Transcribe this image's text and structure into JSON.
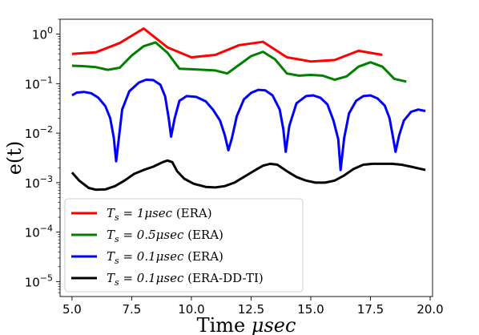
{
  "chart_data": {
    "type": "line",
    "xlabel": "Time μsec",
    "ylabel": "e(t)",
    "xlim": [
      4.5,
      20.1
    ],
    "ylim": [
      5e-06,
      2.0
    ],
    "yscale": "log",
    "grid": false,
    "legend_position": "lower-left",
    "x_ticks": [
      {
        "value": 5.0,
        "label": "5.0"
      },
      {
        "value": 7.5,
        "label": "7.5"
      },
      {
        "value": 10.0,
        "label": "10.0"
      },
      {
        "value": 12.5,
        "label": "12.5"
      },
      {
        "value": 15.0,
        "label": "15.0"
      },
      {
        "value": 17.5,
        "label": "17.5"
      },
      {
        "value": 20.0,
        "label": "20.0"
      }
    ],
    "y_ticks": [
      {
        "value": 1,
        "base": "10",
        "exp": "0"
      },
      {
        "value": 0.1,
        "base": "10",
        "exp": "−1"
      },
      {
        "value": 0.01,
        "base": "10",
        "exp": "−2"
      },
      {
        "value": 0.001,
        "base": "10",
        "exp": "−3"
      },
      {
        "value": 0.0001,
        "base": "10",
        "exp": "−4"
      },
      {
        "value": 1e-05,
        "base": "10",
        "exp": "−5"
      }
    ],
    "series": [
      {
        "name": "T_s = 1μsec (ERA)",
        "legend_math": "T",
        "legend_sub": "s",
        "legend_eq": " = 1μsec",
        "legend_note": " (ERA)",
        "color": "#ff0000",
        "points": [
          [
            5.0,
            0.4
          ],
          [
            6.0,
            0.43
          ],
          [
            7.0,
            0.66
          ],
          [
            8.0,
            1.3
          ],
          [
            9.0,
            0.54
          ],
          [
            10.0,
            0.34
          ],
          [
            11.0,
            0.38
          ],
          [
            12.0,
            0.6
          ],
          [
            13.0,
            0.7
          ],
          [
            14.0,
            0.34
          ],
          [
            15.0,
            0.28
          ],
          [
            16.0,
            0.3
          ],
          [
            17.0,
            0.46
          ],
          [
            18.0,
            0.38
          ]
        ]
      },
      {
        "name": "T_s = 0.5μsec (ERA)",
        "legend_math": "T",
        "legend_sub": "s",
        "legend_eq": " = 0.5μsec",
        "legend_note": " (ERA)",
        "color": "#008000",
        "points": [
          [
            5.0,
            0.23
          ],
          [
            5.5,
            0.225
          ],
          [
            6.0,
            0.215
          ],
          [
            6.5,
            0.19
          ],
          [
            7.0,
            0.21
          ],
          [
            7.5,
            0.37
          ],
          [
            8.0,
            0.57
          ],
          [
            8.5,
            0.68
          ],
          [
            9.0,
            0.42
          ],
          [
            9.5,
            0.2
          ],
          [
            10.0,
            0.195
          ],
          [
            10.5,
            0.19
          ],
          [
            11.0,
            0.185
          ],
          [
            11.5,
            0.16
          ],
          [
            12.0,
            0.24
          ],
          [
            12.5,
            0.36
          ],
          [
            13.0,
            0.44
          ],
          [
            13.5,
            0.31
          ],
          [
            14.0,
            0.16
          ],
          [
            14.5,
            0.145
          ],
          [
            15.0,
            0.15
          ],
          [
            15.5,
            0.145
          ],
          [
            16.0,
            0.12
          ],
          [
            16.5,
            0.14
          ],
          [
            17.0,
            0.22
          ],
          [
            17.5,
            0.27
          ],
          [
            18.0,
            0.22
          ],
          [
            18.5,
            0.125
          ],
          [
            19.0,
            0.11
          ]
        ]
      },
      {
        "name": "T_s = 0.1μsec (ERA)",
        "legend_math": "T",
        "legend_sub": "s",
        "legend_eq": " = 0.1μsec",
        "legend_note": " (ERA)",
        "color": "#0000ff",
        "points": [
          [
            5.0,
            0.058
          ],
          [
            5.2,
            0.066
          ],
          [
            5.5,
            0.068
          ],
          [
            5.8,
            0.064
          ],
          [
            6.1,
            0.052
          ],
          [
            6.4,
            0.035
          ],
          [
            6.6,
            0.02
          ],
          [
            6.75,
            0.008
          ],
          [
            6.85,
            0.0027
          ],
          [
            6.95,
            0.007
          ],
          [
            7.1,
            0.03
          ],
          [
            7.4,
            0.07
          ],
          [
            7.8,
            0.105
          ],
          [
            8.1,
            0.12
          ],
          [
            8.4,
            0.118
          ],
          [
            8.7,
            0.095
          ],
          [
            8.9,
            0.055
          ],
          [
            9.05,
            0.02
          ],
          [
            9.15,
            0.0085
          ],
          [
            9.3,
            0.02
          ],
          [
            9.5,
            0.045
          ],
          [
            9.8,
            0.056
          ],
          [
            10.2,
            0.054
          ],
          [
            10.6,
            0.044
          ],
          [
            10.9,
            0.03
          ],
          [
            11.2,
            0.018
          ],
          [
            11.4,
            0.009
          ],
          [
            11.55,
            0.0045
          ],
          [
            11.7,
            0.008
          ],
          [
            11.9,
            0.022
          ],
          [
            12.2,
            0.048
          ],
          [
            12.5,
            0.065
          ],
          [
            12.8,
            0.075
          ],
          [
            13.1,
            0.073
          ],
          [
            13.4,
            0.058
          ],
          [
            13.7,
            0.03
          ],
          [
            13.85,
            0.012
          ],
          [
            13.95,
            0.0042
          ],
          [
            14.1,
            0.014
          ],
          [
            14.4,
            0.04
          ],
          [
            14.8,
            0.056
          ],
          [
            15.1,
            0.058
          ],
          [
            15.4,
            0.052
          ],
          [
            15.7,
            0.038
          ],
          [
            15.95,
            0.018
          ],
          [
            16.15,
            0.0075
          ],
          [
            16.25,
            0.0018
          ],
          [
            16.4,
            0.008
          ],
          [
            16.6,
            0.025
          ],
          [
            16.9,
            0.045
          ],
          [
            17.2,
            0.056
          ],
          [
            17.5,
            0.058
          ],
          [
            17.8,
            0.05
          ],
          [
            18.1,
            0.036
          ],
          [
            18.3,
            0.02
          ],
          [
            18.45,
            0.008
          ],
          [
            18.55,
            0.0042
          ],
          [
            18.7,
            0.009
          ],
          [
            18.9,
            0.018
          ],
          [
            19.2,
            0.027
          ],
          [
            19.5,
            0.03
          ],
          [
            19.8,
            0.028
          ]
        ]
      },
      {
        "name": "T_s = 0.1μsec (ERA-DD-TI)",
        "legend_math": "T",
        "legend_sub": "s",
        "legend_eq": " = 0.1μsec",
        "legend_note": " (ERA-DD-TI)",
        "color": "#000000",
        "points": [
          [
            5.0,
            0.0016
          ],
          [
            5.3,
            0.0011
          ],
          [
            5.7,
            0.00078
          ],
          [
            6.0,
            0.00072
          ],
          [
            6.4,
            0.00073
          ],
          [
            6.8,
            0.00085
          ],
          [
            7.2,
            0.0011
          ],
          [
            7.6,
            0.0015
          ],
          [
            8.0,
            0.0018
          ],
          [
            8.4,
            0.0021
          ],
          [
            8.8,
            0.0026
          ],
          [
            9.0,
            0.0028
          ],
          [
            9.2,
            0.0026
          ],
          [
            9.4,
            0.0017
          ],
          [
            9.7,
            0.0012
          ],
          [
            10.1,
            0.00095
          ],
          [
            10.6,
            0.00082
          ],
          [
            11.0,
            0.0008
          ],
          [
            11.4,
            0.00085
          ],
          [
            11.8,
            0.001
          ],
          [
            12.2,
            0.0013
          ],
          [
            12.6,
            0.0017
          ],
          [
            13.0,
            0.0022
          ],
          [
            13.3,
            0.0024
          ],
          [
            13.6,
            0.0023
          ],
          [
            14.0,
            0.0017
          ],
          [
            14.4,
            0.0013
          ],
          [
            14.8,
            0.0011
          ],
          [
            15.2,
            0.001
          ],
          [
            15.6,
            0.001
          ],
          [
            16.0,
            0.0011
          ],
          [
            16.4,
            0.0014
          ],
          [
            16.8,
            0.0019
          ],
          [
            17.2,
            0.0023
          ],
          [
            17.6,
            0.0024
          ],
          [
            18.0,
            0.0024
          ],
          [
            18.4,
            0.0024
          ],
          [
            18.8,
            0.0023
          ],
          [
            19.2,
            0.0021
          ],
          [
            19.6,
            0.0019
          ],
          [
            19.8,
            0.0018
          ]
        ]
      }
    ]
  }
}
